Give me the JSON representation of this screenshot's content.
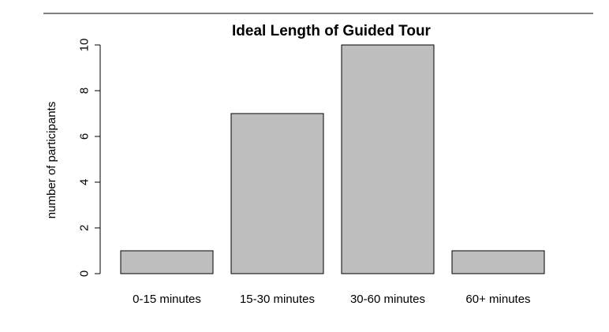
{
  "chart_data": {
    "type": "bar",
    "title": "Ideal Length of Guided Tour",
    "xlabel": "",
    "ylabel": "number of participants",
    "categories": [
      "0-15 minutes",
      "15-30 minutes",
      "30-60 minutes",
      "60+ minutes"
    ],
    "values": [
      1,
      7,
      10,
      1
    ],
    "ylim": [
      0,
      10
    ],
    "yticks": [
      0,
      2,
      4,
      6,
      8,
      10
    ],
    "bar_color": "#bebebe",
    "bar_border_color": "#000000",
    "grid": false,
    "legend": "none"
  }
}
